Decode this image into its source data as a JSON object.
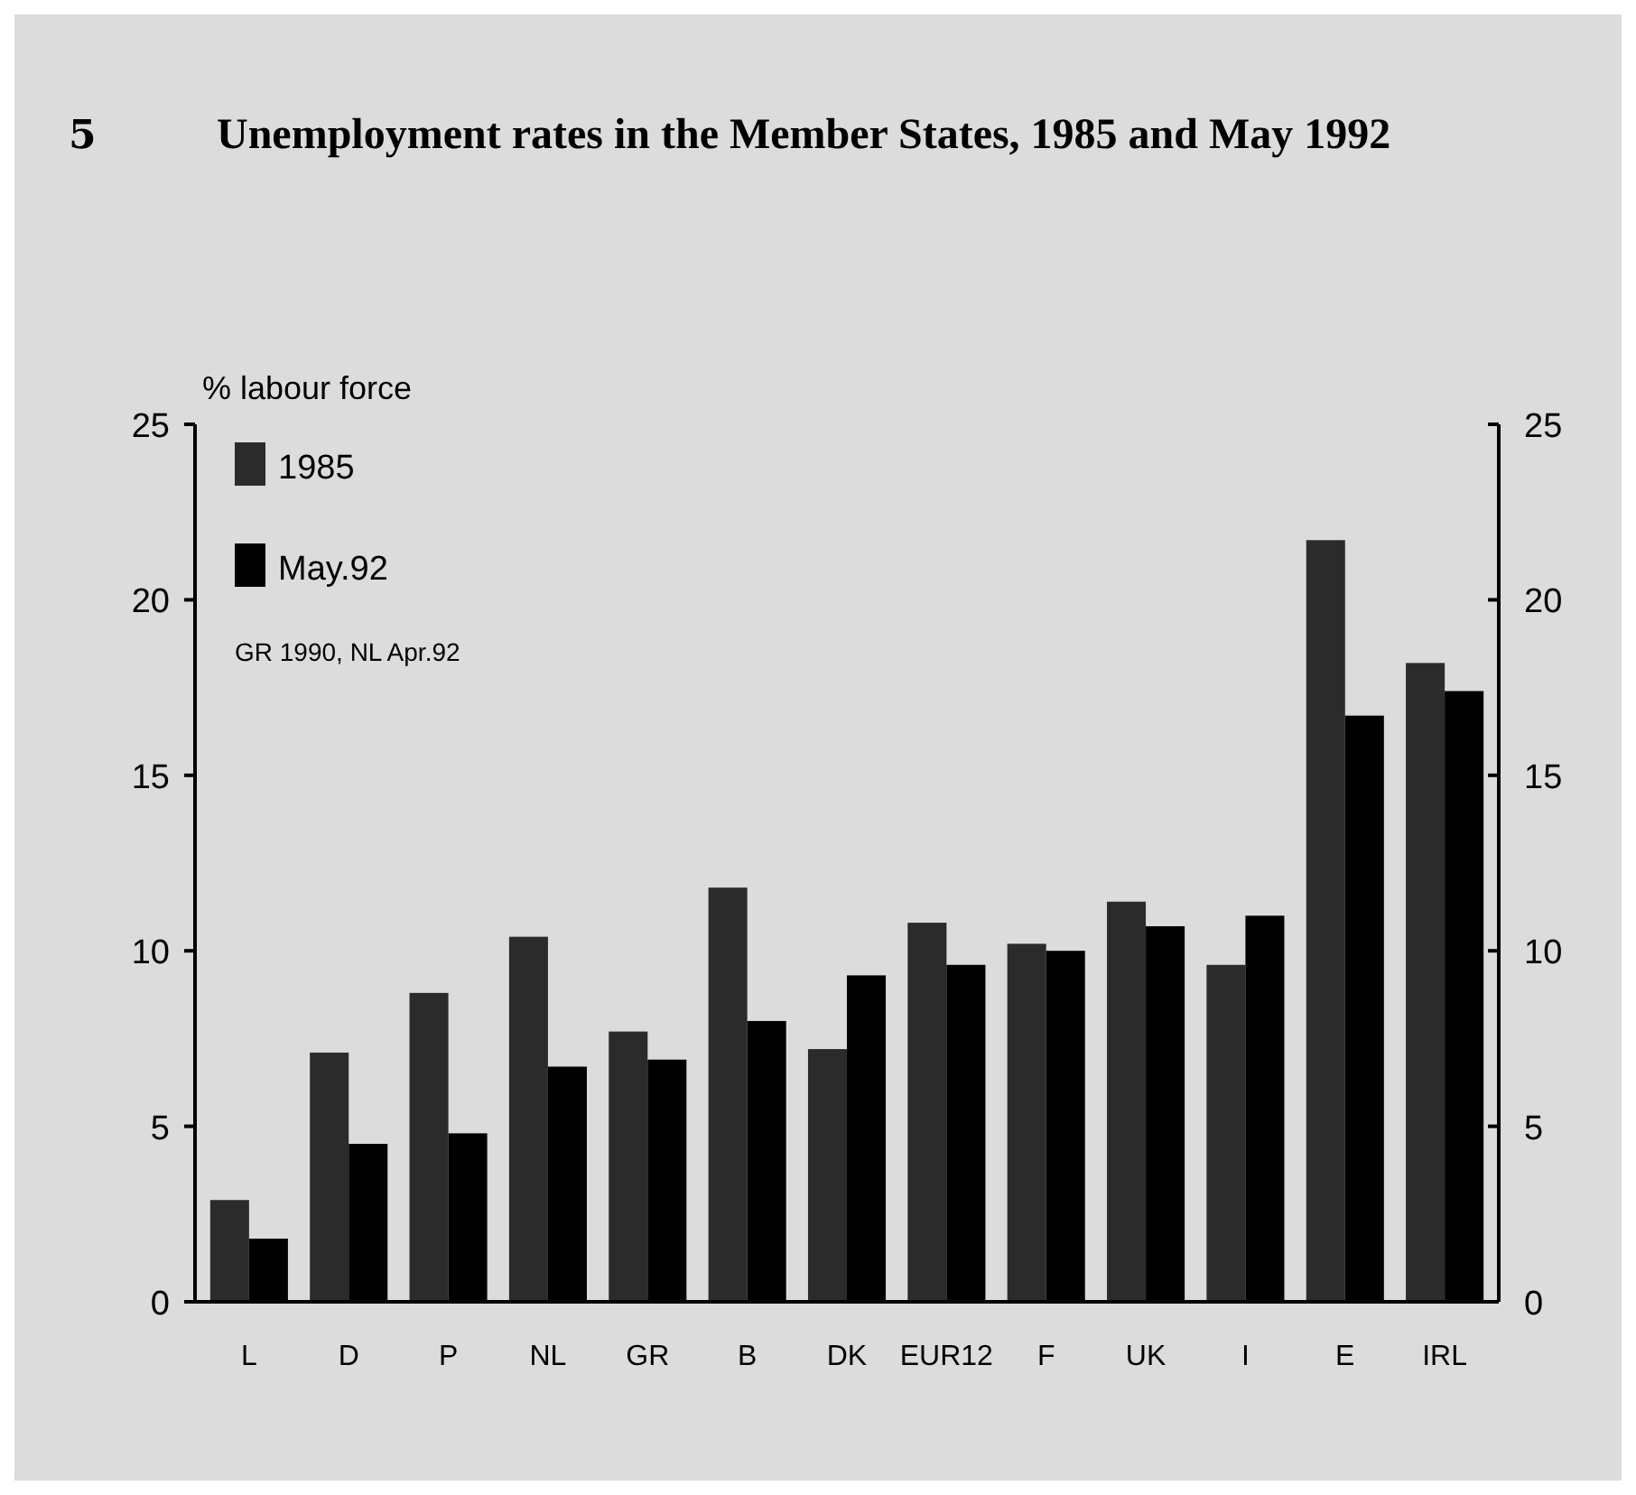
{
  "chart_data": {
    "type": "bar",
    "title": "Unemployment rates in the Member States, 1985 and May 1992",
    "ylabel": "% labour force",
    "annotations": [
      "5",
      "GR 1990, NL Apr.92"
    ],
    "categories": [
      "L",
      "D",
      "P",
      "NL",
      "GR",
      "B",
      "DK",
      "EUR12",
      "F",
      "UK",
      "I",
      "E",
      "IRL"
    ],
    "series": [
      {
        "name": "1985",
        "color": "#2b2b2b",
        "values": [
          2.9,
          7.1,
          8.8,
          10.4,
          7.7,
          11.8,
          7.2,
          10.8,
          10.2,
          11.4,
          9.6,
          21.7,
          18.2
        ]
      },
      {
        "name": "May.92",
        "color": "#000000",
        "values": [
          1.8,
          4.5,
          4.8,
          6.7,
          6.9,
          8.0,
          9.3,
          9.6,
          10.0,
          10.7,
          11.0,
          16.7,
          17.4
        ]
      }
    ],
    "ylim": [
      0,
      25
    ],
    "yticks": [
      0,
      5,
      10,
      15,
      20,
      25
    ],
    "y2lim": [
      0,
      25
    ],
    "y2ticks": [
      0,
      5,
      10,
      15,
      20,
      25
    ],
    "grid": false,
    "legend": "top left"
  }
}
